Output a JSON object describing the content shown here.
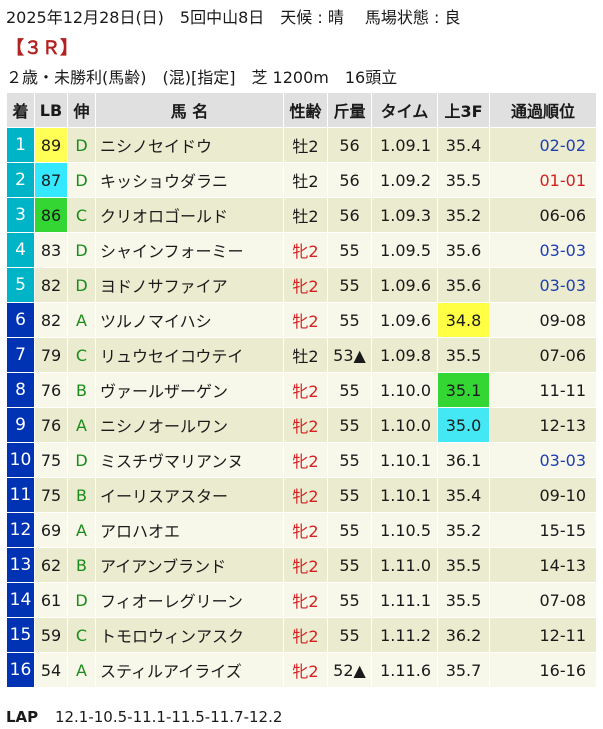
{
  "header": {
    "date_line": "2025年12月28日(日)　5回中山8日　天候 : 晴　 馬場状態 : 良",
    "race_no": "【３Ｒ】",
    "race_info": "２歳・未勝利(馬齢)　(混)[指定]　芝 1200m　16頭立"
  },
  "columns": [
    "着",
    "LB",
    "伸",
    "馬 名",
    "性齢",
    "斤量",
    "タイム",
    "上3F",
    "通過順位"
  ],
  "rows": [
    {
      "rank": "1",
      "lb": "89",
      "nobi": "D",
      "name": "ニシノセイドウ",
      "sexage": "牡2",
      "weight": "56",
      "time": "1.09.1",
      "last3f": "35.4",
      "pass": "02-02"
    },
    {
      "rank": "2",
      "lb": "87",
      "nobi": "D",
      "name": "キッショウダラニ",
      "sexage": "牡2",
      "weight": "56",
      "time": "1.09.2",
      "last3f": "35.5",
      "pass": "01-01"
    },
    {
      "rank": "3",
      "lb": "86",
      "nobi": "C",
      "name": "クリオロゴールド",
      "sexage": "牡2",
      "weight": "56",
      "time": "1.09.3",
      "last3f": "35.2",
      "pass": "06-06"
    },
    {
      "rank": "4",
      "lb": "83",
      "nobi": "D",
      "name": "シャインフォーミー",
      "sexage": "牝2",
      "weight": "55",
      "time": "1.09.5",
      "last3f": "35.6",
      "pass": "03-03"
    },
    {
      "rank": "5",
      "lb": "82",
      "nobi": "D",
      "name": "ヨドノサファイア",
      "sexage": "牝2",
      "weight": "55",
      "time": "1.09.6",
      "last3f": "35.6",
      "pass": "03-03"
    },
    {
      "rank": "6",
      "lb": "82",
      "nobi": "A",
      "name": "ツルノマイハシ",
      "sexage": "牝2",
      "weight": "55",
      "time": "1.09.6",
      "last3f": "34.8",
      "pass": "09-08"
    },
    {
      "rank": "7",
      "lb": "79",
      "nobi": "C",
      "name": "リュウセイコウテイ",
      "sexage": "牡2",
      "weight": "53▲",
      "time": "1.09.8",
      "last3f": "35.5",
      "pass": "07-06"
    },
    {
      "rank": "8",
      "lb": "76",
      "nobi": "B",
      "name": "ヴァールザーゲン",
      "sexage": "牝2",
      "weight": "55",
      "time": "1.10.0",
      "last3f": "35.1",
      "pass": "11-11"
    },
    {
      "rank": "9",
      "lb": "76",
      "nobi": "A",
      "name": "ニシノオールワン",
      "sexage": "牝2",
      "weight": "55",
      "time": "1.10.0",
      "last3f": "35.0",
      "pass": "12-13"
    },
    {
      "rank": "10",
      "lb": "75",
      "nobi": "D",
      "name": "ミスチヴマリアンヌ",
      "sexage": "牝2",
      "weight": "55",
      "time": "1.10.1",
      "last3f": "36.1",
      "pass": "03-03"
    },
    {
      "rank": "11",
      "lb": "75",
      "nobi": "B",
      "name": "イーリスアスター",
      "sexage": "牝2",
      "weight": "55",
      "time": "1.10.1",
      "last3f": "35.4",
      "pass": "09-10"
    },
    {
      "rank": "12",
      "lb": "69",
      "nobi": "A",
      "name": "アロハオエ",
      "sexage": "牝2",
      "weight": "55",
      "time": "1.10.5",
      "last3f": "35.2",
      "pass": "15-15"
    },
    {
      "rank": "13",
      "lb": "62",
      "nobi": "B",
      "name": "アイアンブランド",
      "sexage": "牝2",
      "weight": "55",
      "time": "1.11.0",
      "last3f": "35.5",
      "pass": "14-13"
    },
    {
      "rank": "14",
      "lb": "61",
      "nobi": "D",
      "name": "フィオーレグリーン",
      "sexage": "牝2",
      "weight": "55",
      "time": "1.11.1",
      "last3f": "35.5",
      "pass": "07-08"
    },
    {
      "rank": "15",
      "lb": "59",
      "nobi": "C",
      "name": "トモロウィンアスク",
      "sexage": "牝2",
      "weight": "55",
      "time": "1.11.2",
      "last3f": "36.2",
      "pass": "12-11"
    },
    {
      "rank": "16",
      "lb": "54",
      "nobi": "A",
      "name": "スティルアイライズ",
      "sexage": "牝2",
      "weight": "52▲",
      "time": "1.11.6",
      "last3f": "35.7",
      "pass": "16-16"
    }
  ],
  "lap": {
    "label": "LAP",
    "value": "12.1-10.5-11.1-11.5-11.7-12.2"
  },
  "colors": {
    "rank_bg": [
      "#00b4c8",
      "#00b4c8",
      "#00b4c8",
      "#00b4c8",
      "#00b4c8",
      "#0033b3",
      "#0033b3",
      "#0033b3",
      "#0033b3",
      "#0033b3",
      "#0033b3",
      "#0033b3",
      "#0033b3",
      "#0033b3",
      "#0033b3",
      "#0033b3"
    ],
    "lb_bg": {
      "0": "#ffff55",
      "1": "#33e8ff",
      "2": "#33d633"
    },
    "last3f_bg": {
      "5": "#ffff44",
      "7": "#33d633",
      "8": "#44e8f4"
    },
    "pass_color": {
      "0": "#1e3fb0",
      "1": "#d42020",
      "3": "#1e3fb0",
      "4": "#1e3fb0",
      "9": "#1e3fb0"
    },
    "nobi_color": "#1a8c1a",
    "female_color": "#d42020",
    "text_color": "#1a1a1a"
  }
}
